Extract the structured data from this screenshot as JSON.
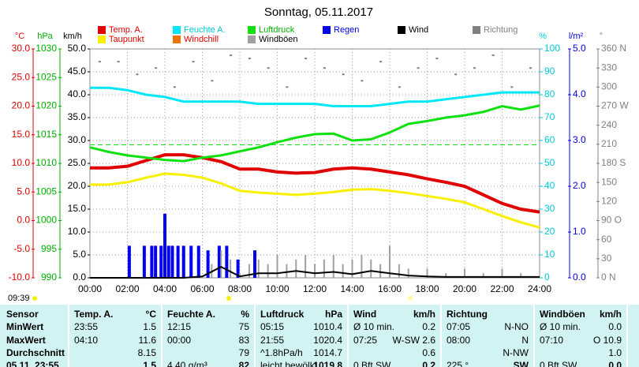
{
  "chart_data": {
    "type": "line",
    "title": "Sonntag, 05.11.2017",
    "x": [
      0,
      1,
      2,
      3,
      4,
      5,
      6,
      7,
      8,
      9,
      10,
      11,
      12,
      13,
      14,
      15,
      16,
      17,
      18,
      19,
      20,
      21,
      22,
      23,
      24
    ],
    "xlim": [
      0,
      24
    ],
    "xticks": [
      {
        "value": 0,
        "label": "00:00"
      },
      {
        "value": 2,
        "label": "02:00"
      },
      {
        "value": 4,
        "label": "04:00"
      },
      {
        "value": 6,
        "label": "06:00"
      },
      {
        "value": 8,
        "label": "08:00"
      },
      {
        "value": 10,
        "label": "10:00"
      },
      {
        "value": 12,
        "label": "12:00"
      },
      {
        "value": 14,
        "label": "14:00"
      },
      {
        "value": 16,
        "label": "16:00"
      },
      {
        "value": 18,
        "label": "18:00"
      },
      {
        "value": 20,
        "label": "20:00"
      },
      {
        "value": 22,
        "label": "22:00"
      },
      {
        "value": 24,
        "label": "24:00"
      }
    ],
    "grid": true,
    "axes": [
      {
        "label": "°C",
        "color": "#e00000",
        "ylim": [
          -10,
          30
        ],
        "yticks": [
          {
            "value": 30,
            "label": "30.0"
          },
          {
            "value": 25,
            "label": "25.0"
          },
          {
            "value": 20,
            "label": "20.0"
          },
          {
            "value": 15,
            "label": "15.0"
          },
          {
            "value": 10,
            "label": "10.0"
          },
          {
            "value": 5,
            "label": "5.0"
          },
          {
            "value": 0,
            "label": "0.0"
          },
          {
            "value": -5,
            "label": "-5.0"
          },
          {
            "value": -10,
            "label": "-10.0"
          }
        ]
      },
      {
        "label": "hPa",
        "color": "#00b000",
        "ylim": [
          990,
          1030
        ],
        "yticks": [
          1030,
          1025,
          1020,
          1015,
          1010,
          1005,
          1000,
          995,
          990
        ]
      },
      {
        "label": "km/h",
        "color": "#000000",
        "ylim": [
          0,
          50
        ],
        "yticks": [
          {
            "value": 50,
            "label": "50.0"
          },
          {
            "value": 45,
            "label": "45.0"
          },
          {
            "value": 40,
            "label": "40.0"
          },
          {
            "value": 35,
            "label": "35.0"
          },
          {
            "value": 30,
            "label": "30.0"
          },
          {
            "value": 25,
            "label": "25.0"
          },
          {
            "value": 20,
            "label": "20.0"
          },
          {
            "value": 15,
            "label": "15.0"
          },
          {
            "value": 10,
            "label": "10.0"
          },
          {
            "value": 5,
            "label": "5.0"
          },
          {
            "value": 0,
            "label": "0.0"
          }
        ],
        "grid": true
      },
      {
        "label": "%",
        "color": "#00c8d8",
        "ylim": [
          0,
          100
        ],
        "yticks": [
          100,
          90,
          80,
          70,
          60,
          50,
          40,
          30,
          20,
          10,
          0
        ]
      },
      {
        "label": "l/m²",
        "color": "#0000e0",
        "ylim": [
          0,
          5
        ],
        "yticks": [
          {
            "value": 5,
            "label": "5.0"
          },
          {
            "value": 4,
            "label": "4.0"
          },
          {
            "value": 3,
            "label": "3.0"
          },
          {
            "value": 2,
            "label": "2.0"
          },
          {
            "value": 1,
            "label": "1.0"
          },
          {
            "value": 0,
            "label": "0.0"
          }
        ]
      },
      {
        "label": "°",
        "color": "#808080",
        "ylim": [
          0,
          360
        ],
        "yticks": [
          {
            "value": 360,
            "label": "360 N"
          },
          330,
          300,
          {
            "value": 270,
            "label": "270 W"
          },
          240,
          210,
          {
            "value": 180,
            "label": "180 S"
          },
          150,
          120,
          {
            "value": 90,
            "label": "90 O"
          },
          60,
          30,
          {
            "value": 0,
            "label": "0 N"
          }
        ]
      }
    ],
    "series": [
      {
        "name": "Temp. A.",
        "color": "#e00000",
        "text_color": "#e00000",
        "axis": 0,
        "style": "line",
        "width": 4,
        "values": [
          9.2,
          9.2,
          9.5,
          10.5,
          11.5,
          11.5,
          11.0,
          10.3,
          9.0,
          9.0,
          8.5,
          8.3,
          8.4,
          9.0,
          9.2,
          9.0,
          8.5,
          8.0,
          7.3,
          6.7,
          6.0,
          4.5,
          3.0,
          2.0,
          1.5
        ]
      },
      {
        "name": "Feuchte A.",
        "color": "#00e8f8",
        "text_color": "#00c8d8",
        "axis": 3,
        "style": "line",
        "width": 3,
        "values": [
          83,
          83,
          82,
          80,
          79,
          77,
          77,
          77,
          77,
          76,
          76,
          76,
          76,
          75,
          75,
          75,
          76,
          77,
          77,
          78,
          79,
          80,
          81,
          81,
          81
        ]
      },
      {
        "name": "Luftdruck",
        "color": "#10e010",
        "text_color": "#00b000",
        "axis": 1,
        "style": "line",
        "width": 3,
        "reference_line": 1013.25,
        "values": [
          1012.8,
          1012.0,
          1011.4,
          1011.0,
          1010.6,
          1010.4,
          1011.0,
          1011.4,
          1012.1,
          1012.8,
          1013.7,
          1014.5,
          1015.1,
          1015.2,
          1014.0,
          1014.2,
          1015.4,
          1016.9,
          1017.4,
          1018.0,
          1018.4,
          1019.0,
          1020.0,
          1019.4,
          1020.1
        ]
      },
      {
        "name": "Regen",
        "color": "#0000f0",
        "text_color": "#0000e0",
        "axis": 4,
        "style": "bar",
        "width": 4,
        "x": [
          2.1,
          2.9,
          3.3,
          3.5,
          3.8,
          4.0,
          4.2,
          4.4,
          4.7,
          5.0,
          5.4,
          5.8,
          6.3,
          6.9,
          7.3,
          7.9,
          8.8
        ],
        "values": [
          0.7,
          0.7,
          0.7,
          0.7,
          0.7,
          1.4,
          0.7,
          0.7,
          0.7,
          0.7,
          0.7,
          0.7,
          0.6,
          0.7,
          0.7,
          0.4,
          0.6
        ]
      },
      {
        "name": "Wind",
        "color": "#000000",
        "text_color": "#000000",
        "axis": 2,
        "style": "line",
        "width": 2,
        "values": [
          0,
          0,
          0,
          0,
          0,
          0,
          0.3,
          2.4,
          0.3,
          1.0,
          1.0,
          1.5,
          1.0,
          1.3,
          0.8,
          1.5,
          1.0,
          0.5,
          0.3,
          0.2,
          0.2,
          0.2,
          0.2,
          0.2,
          0.2
        ]
      },
      {
        "name": "Richtung",
        "color": "#808080",
        "text_color": "#808080",
        "axis": 5,
        "style": "dots",
        "x": [
          0.5,
          1.5,
          2.5,
          3.5,
          4.5,
          5.5,
          6.5,
          7.5,
          8.5,
          9.5,
          10.5,
          11.5,
          12.5,
          13.5,
          14.5,
          15.5,
          16.5,
          17.5,
          18.5,
          19.5,
          20.5,
          21.5,
          22.5,
          23.5
        ],
        "values": [
          340,
          340,
          320,
          330,
          300,
          340,
          310,
          350,
          345,
          330,
          300,
          345,
          330,
          320,
          310,
          340,
          300,
          330,
          345,
          320,
          330,
          350,
          300,
          330
        ]
      },
      {
        "name": "Taupunkt",
        "color": "#f8f000",
        "text_color": "#e00000",
        "axis": 0,
        "style": "line",
        "width": 3,
        "values": [
          6.3,
          6.3,
          6.7,
          7.5,
          8.2,
          8.0,
          7.5,
          6.5,
          5.2,
          4.9,
          4.7,
          4.5,
          4.7,
          5.0,
          5.4,
          5.5,
          5.2,
          4.8,
          4.3,
          3.8,
          3.2,
          2.0,
          0.8,
          -0.3,
          -1.2
        ]
      },
      {
        "name": "Windchill",
        "color": "#f07000",
        "text_color": "#e00000",
        "axis": 0,
        "style": "none"
      },
      {
        "name": "Windböen",
        "color": "#a0a0a0",
        "text_color": "#000000",
        "axis": 2,
        "style": "bar",
        "width": 2,
        "x": [
          6.5,
          7,
          7.5,
          8,
          8.5,
          9,
          9.5,
          10,
          10.5,
          11,
          11.5,
          12,
          12.5,
          13,
          13.5,
          14,
          14.5,
          15,
          15.5,
          16,
          16.5,
          17,
          18,
          19,
          20,
          21,
          22,
          23
        ],
        "values": [
          3,
          6,
          4,
          1,
          3,
          4,
          3,
          5,
          3,
          4,
          5,
          3,
          4,
          5,
          3,
          4,
          5,
          4,
          3,
          7,
          3,
          2,
          2,
          1,
          2,
          1,
          2,
          1
        ]
      }
    ]
  },
  "status_time": "09:39",
  "table": {
    "sensor_header": "Sensor",
    "groups": [
      {
        "name": "Temp. A.",
        "unit": "°C"
      },
      {
        "name": "Feuchte A.",
        "unit": "%"
      },
      {
        "name": "Luftdruck",
        "unit": "hPa"
      },
      {
        "name": "Wind",
        "unit": "km/h"
      },
      {
        "name": "Richtung"
      },
      {
        "name": "Windböen",
        "unit": "km/h"
      }
    ],
    "rows": [
      {
        "label": "MinWert",
        "cells": [
          {
            "left": "23:55",
            "right": "1.5"
          },
          {
            "left": "12:15",
            "right": "75"
          },
          {
            "left": "05:15",
            "right": "1010.4"
          },
          {
            "left": "Ø 10 min.",
            "right": "0.2"
          },
          {
            "left": "07:05",
            "right": "N-NO"
          },
          {
            "left": "Ø 10 min.",
            "right": "0.0"
          }
        ]
      },
      {
        "label": "MaxWert",
        "cells": [
          {
            "left": "04:10",
            "right": "11.6"
          },
          {
            "left": "00:00",
            "right": "83"
          },
          {
            "left": "21:55",
            "right": "1020.4"
          },
          {
            "left": "07:25",
            "right": "W-SW 2.6"
          },
          {
            "left": "08:00",
            "right": "N"
          },
          {
            "left": "07:10",
            "right": "O 10.9"
          }
        ]
      },
      {
        "label": "Durchschnitt",
        "cells": [
          {
            "right": "8.15"
          },
          {
            "right": "79"
          },
          {
            "left": "^1.8hPa/h",
            "right": "1014.7"
          },
          {
            "right": "0.6"
          },
          {
            "right": "N-NW"
          },
          {
            "right": "1.0"
          }
        ]
      },
      {
        "label": "05.11. 23:55",
        "cells": [
          {
            "right": "1.5"
          },
          {
            "left": "4.40 g/m³",
            "right": "82"
          },
          {
            "left": "leicht bewölkt",
            "right": "1019.8"
          },
          {
            "left": "0 Bft SW",
            "right": "0.2"
          },
          {
            "left": "225 °",
            "right": "SW"
          },
          {
            "left": "0 Bft SW",
            "right": "0.0"
          }
        ]
      }
    ]
  }
}
